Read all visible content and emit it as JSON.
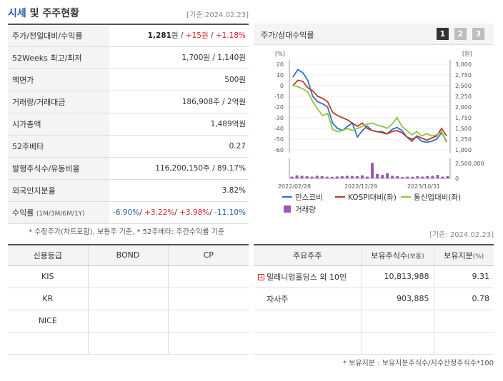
{
  "header": {
    "title": "시세",
    "title_suffix": "및 주주현황",
    "date": "[기준:2024.02.23]"
  },
  "price_rows": [
    {
      "label": "주가/전일대비/수익률",
      "price": "1,281",
      "unit": "원",
      "change": "+15",
      "change_unit": "원",
      "rate": "+1.18%"
    },
    {
      "label": "52Weeks 최고/최저",
      "value": "1,700원 / 1,140원"
    },
    {
      "label": "액면가",
      "value": "500원"
    },
    {
      "label": "거래량/거래대금",
      "value": "186,908주 / 2억원"
    },
    {
      "label": "시가총액",
      "value": "1,489억원"
    },
    {
      "label": "52주베타",
      "value": "0.27"
    },
    {
      "label": "발행주식수/유동비율",
      "value": "116,200,150주 / 89.17%"
    },
    {
      "label": "외국인지분율",
      "value": "3.82%"
    },
    {
      "label": "수익률",
      "label_unit": "(1M/3M/6M/1Y)",
      "r1": "-6.90%",
      "r2": "+3.22%",
      "r3": "+3.98%",
      "r4": "-11.10%"
    }
  ],
  "note": "* 수정주가(차트포함), 보통주 기준, * 52주베타: 주간수익률 기준",
  "chart": {
    "title": "주가/상대수익률",
    "buttons": [
      "1",
      "2",
      "3"
    ]
  },
  "chart_data": {
    "type": "line",
    "x_ticks": [
      "2022/02/28",
      "2022/12/29",
      "2023/10/31"
    ],
    "left_axis": {
      "label": "[%]",
      "ticks": [
        20,
        10,
        0,
        -10,
        -20,
        -30,
        -40,
        -50,
        -60
      ],
      "range": [
        -60,
        20
      ]
    },
    "right_axis": {
      "label": "[원]",
      "ticks": [
        "3,000",
        "2,750",
        "2,500",
        "2,250",
        "2,000",
        "1,750",
        "1,500",
        "1,250",
        "1,000"
      ],
      "range": [
        1000,
        3000
      ]
    },
    "volume_axis": {
      "ticks": [
        "2,500,000",
        "0"
      ],
      "range": [
        0,
        2500000
      ]
    },
    "series": [
      {
        "name": "인스코비",
        "color": "#2b6fd6",
        "values": [
          8,
          15,
          12,
          5,
          -10,
          -15,
          -17,
          -20,
          -35,
          -40,
          -42,
          -38,
          -35,
          -48,
          -42,
          -38,
          -42,
          -43,
          -43,
          -45,
          -41,
          -39,
          -42,
          -48,
          -50,
          -48,
          -52,
          -53,
          -52,
          -50,
          -44,
          -52
        ]
      },
      {
        "name": "KOSPI대비(좌)",
        "color": "#c0392b",
        "values": [
          0,
          5,
          4,
          -2,
          -5,
          -10,
          -12,
          -15,
          -25,
          -28,
          -30,
          -32,
          -35,
          -38,
          -35,
          -40,
          -42,
          -43,
          -44,
          -45,
          -43,
          -42,
          -44,
          -48,
          -52,
          -47,
          -49,
          -51,
          -49,
          -47,
          -40,
          -47
        ]
      },
      {
        "name": "통신업대비(좌)",
        "color": "#8dc63f",
        "values": [
          0,
          -1,
          -3,
          -6,
          -15,
          -22,
          -28,
          -26,
          -41,
          -43,
          -42,
          -40,
          -42,
          -40,
          -38,
          -36,
          -35,
          -37,
          -38,
          -40,
          -36,
          -30,
          -38,
          -42,
          -46,
          -43,
          -47,
          -45,
          -47,
          -46,
          -43,
          -53
        ]
      }
    ],
    "volume": {
      "name": "거래량",
      "color": "#9b59b6",
      "values": [
        200,
        350,
        300,
        250,
        200,
        300,
        250,
        200,
        180,
        220,
        250,
        300,
        280,
        250,
        350,
        200,
        1800,
        500,
        400,
        600,
        300,
        250,
        150,
        200,
        180,
        250,
        200,
        250,
        300,
        400,
        200,
        250
      ]
    }
  },
  "credit": {
    "headers": [
      "신용등급",
      "BOND",
      "CP"
    ],
    "rows": [
      [
        "KIS",
        "",
        ""
      ],
      [
        "KR",
        "",
        ""
      ],
      [
        "NICE",
        "",
        ""
      ],
      [
        "",
        "",
        ""
      ]
    ]
  },
  "holders": {
    "date": "[기준: 2024.02.23]",
    "headers": [
      "주요주주",
      "보유주식수",
      "(보통)",
      "보유지분",
      "(%)"
    ],
    "rows": [
      {
        "name": "밀레니엄홀딩스 외 10인",
        "shares": "10,813,988",
        "pct": "9.31",
        "plus": true
      },
      {
        "name": "자사주",
        "shares": "903,885",
        "pct": "0.78",
        "plus": false
      },
      {
        "name": "",
        "shares": "",
        "pct": ""
      },
      {
        "name": "",
        "shares": "",
        "pct": ""
      }
    ]
  },
  "footer": "* 보유지분 : 보유지분주식수/지수산정주식수*100"
}
